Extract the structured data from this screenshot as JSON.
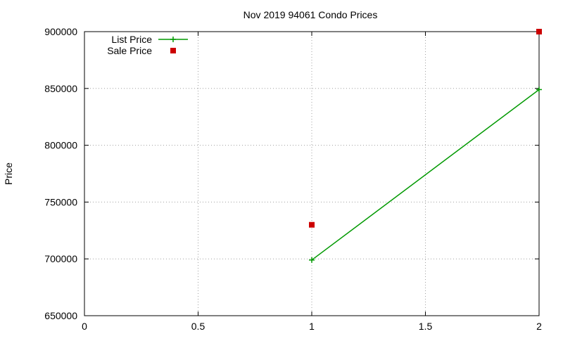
{
  "chart_data": {
    "type": "line",
    "title": "Nov 2019 94061 Condo Prices",
    "xlabel": "",
    "ylabel": "Price",
    "xlim": [
      0,
      2
    ],
    "ylim": [
      650000,
      900000
    ],
    "xticks": [
      0,
      0.5,
      1,
      1.5,
      2
    ],
    "xtick_labels": [
      "0",
      "0.5",
      "1",
      "1.5",
      "2"
    ],
    "yticks": [
      650000,
      700000,
      750000,
      800000,
      850000,
      900000
    ],
    "ytick_labels": [
      "650000",
      "700000",
      "750000",
      "800000",
      "850000",
      "900000"
    ],
    "grid": true,
    "legend_position": "top-left",
    "series": [
      {
        "name": "List Price",
        "style": "line-plus",
        "color": "#009900",
        "points": [
          {
            "x": 1,
            "y": 699000
          },
          {
            "x": 2,
            "y": 849000
          }
        ]
      },
      {
        "name": "Sale Price",
        "style": "square-markers",
        "color": "#cc0000",
        "points": [
          {
            "x": 1,
            "y": 730000
          },
          {
            "x": 2,
            "y": 900000
          }
        ]
      }
    ]
  }
}
